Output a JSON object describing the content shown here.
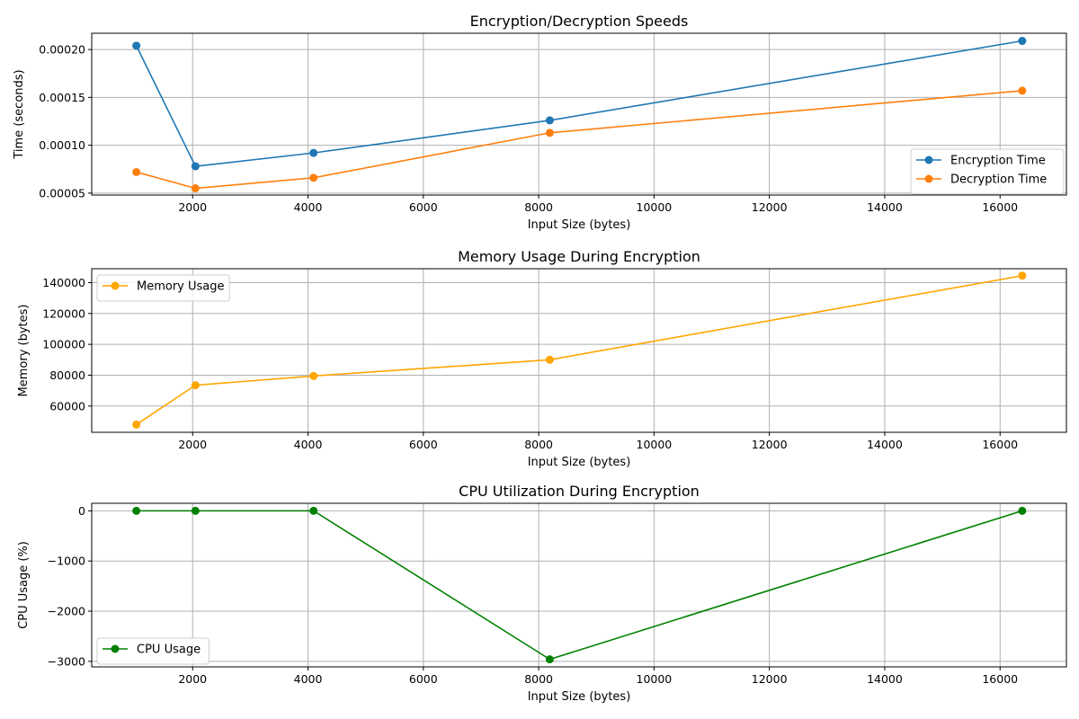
{
  "chart_data": [
    {
      "type": "line",
      "title": "Encryption/Decryption Speeds",
      "xlabel": "Input Size (bytes)",
      "ylabel": "Time (seconds)",
      "x": [
        1024,
        2048,
        4096,
        8192,
        16384
      ],
      "xlim": [
        250,
        17150
      ],
      "ylim": [
        4.8e-05,
        0.000217
      ],
      "xticks": [
        2000,
        4000,
        6000,
        8000,
        10000,
        12000,
        14000,
        16000
      ],
      "yticks": [
        5e-05,
        0.0001,
        0.00015,
        0.0002
      ],
      "ytick_labels": [
        "0.00005",
        "0.00010",
        "0.00015",
        "0.00020"
      ],
      "grid": true,
      "legend_position": "lower-right",
      "series": [
        {
          "name": "Encryption Time",
          "color": "#1f77b4",
          "values": [
            0.000204,
            7.8e-05,
            9.2e-05,
            0.000126,
            0.000209
          ]
        },
        {
          "name": "Decryption Time",
          "color": "#ff7f0e",
          "values": [
            7.2e-05,
            5.5e-05,
            6.6e-05,
            0.000113,
            0.000157
          ]
        }
      ]
    },
    {
      "type": "line",
      "title": "Memory Usage During Encryption",
      "xlabel": "Input Size (bytes)",
      "ylabel": "Memory (bytes)",
      "x": [
        1024,
        2048,
        4096,
        8192,
        16384
      ],
      "xlim": [
        250,
        17150
      ],
      "ylim": [
        43000,
        149000
      ],
      "xticks": [
        2000,
        4000,
        6000,
        8000,
        10000,
        12000,
        14000,
        16000
      ],
      "yticks": [
        60000,
        80000,
        100000,
        120000,
        140000
      ],
      "ytick_labels": [
        "60000",
        "80000",
        "100000",
        "120000",
        "140000"
      ],
      "grid": true,
      "legend_position": "upper-left",
      "series": [
        {
          "name": "Memory Usage",
          "color": "#ffa500",
          "values": [
            48000,
            73500,
            79500,
            90000,
            144500
          ]
        }
      ]
    },
    {
      "type": "line",
      "title": "CPU Utilization During Encryption",
      "xlabel": "Input Size (bytes)",
      "ylabel": "CPU Usage (%)",
      "x": [
        1024,
        2048,
        4096,
        8192,
        16384
      ],
      "xlim": [
        250,
        17150
      ],
      "ylim": [
        -3110,
        150
      ],
      "xticks": [
        2000,
        4000,
        6000,
        8000,
        10000,
        12000,
        14000,
        16000
      ],
      "yticks": [
        -3000,
        -2000,
        -1000,
        0
      ],
      "ytick_labels": [
        "−3000",
        "−2000",
        "−1000",
        "0"
      ],
      "grid": true,
      "legend_position": "lower-left",
      "series": [
        {
          "name": "CPU Usage",
          "color": "#008000",
          "values": [
            0,
            0,
            0,
            -2960,
            0
          ]
        }
      ]
    }
  ]
}
